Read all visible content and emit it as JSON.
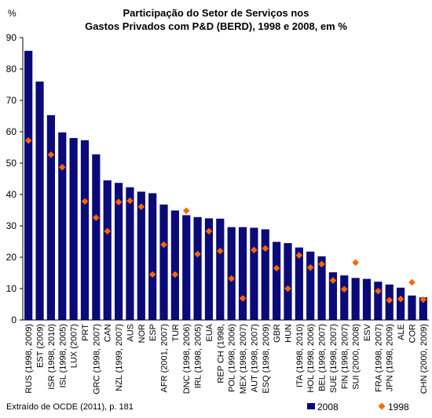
{
  "chart_data": {
    "type": "bar",
    "title_line1": "Participação do Setor de Serviços nos",
    "title_line2": "Gastos Privados com P&D (BERD), 1998 e 2008, em %",
    "ylabel": "%",
    "ylim": [
      0,
      90
    ],
    "yticks": [
      0,
      10,
      20,
      30,
      40,
      50,
      60,
      70,
      80,
      90
    ],
    "grid": false,
    "legend_position": "bottom-right",
    "source": "Extraído de OCDE (2011), p. 181",
    "categories": [
      "RUS (1998, 2009)",
      "EST (2009)",
      "ISR (1998, 2010)",
      "ISL (1998, 2005)",
      "LUX (2007)",
      "PRT",
      "GRC (1998, 2007)",
      "CAN",
      "NZL (1999, 2007)",
      "AUS",
      "NOR",
      "ESP",
      "AFR (2001, 2007)",
      "TUR",
      "DNC (1998, 2006)",
      "IRL (1998, 2005)",
      "EUA",
      "REP CH (1998,",
      "POL (1998, 2006)",
      "MEX (1998, 2007)",
      "AUT (1998, 2007)",
      "ESQ (1998, 2009)",
      "GBR",
      "HUN",
      "ITA (1998, 2010)",
      "HOL (1998, 2006)",
      "BEL (1998, 2007)",
      "SUE (1998, 2007)",
      "FIN (1998, 2007)",
      "SUI (2000, 2008)",
      "ESV",
      "FRA (1998, 2007)",
      "JPN (1998, 2009)",
      "ALE",
      "COR",
      "CHN (2000, 2009)"
    ],
    "series": [
      {
        "name": "2008",
        "kind": "bar",
        "color": "#0a0a78",
        "values": [
          85.8,
          76.0,
          65.3,
          59.8,
          58.0,
          57.3,
          52.8,
          44.5,
          43.7,
          42.3,
          40.9,
          40.4,
          36.8,
          34.9,
          33.4,
          32.8,
          32.4,
          32.3,
          29.6,
          29.6,
          29.4,
          28.9,
          24.9,
          24.5,
          23.1,
          21.8,
          20.3,
          15.2,
          14.2,
          13.4,
          13.1,
          12.2,
          11.3,
          10.3,
          7.8,
          7.2
        ]
      },
      {
        "name": "1998",
        "kind": "marker",
        "color": "#ff6600",
        "values": [
          57.2,
          null,
          52.7,
          48.7,
          null,
          37.8,
          32.6,
          28.3,
          37.6,
          38.0,
          36.1,
          14.5,
          24.0,
          14.5,
          34.8,
          21.0,
          28.3,
          22.0,
          13.2,
          6.9,
          22.3,
          22.8,
          16.5,
          10.0,
          20.6,
          16.7,
          17.8,
          12.6,
          9.8,
          18.3,
          null,
          9.2,
          6.3,
          6.7,
          12.0,
          6.5
        ]
      }
    ]
  }
}
